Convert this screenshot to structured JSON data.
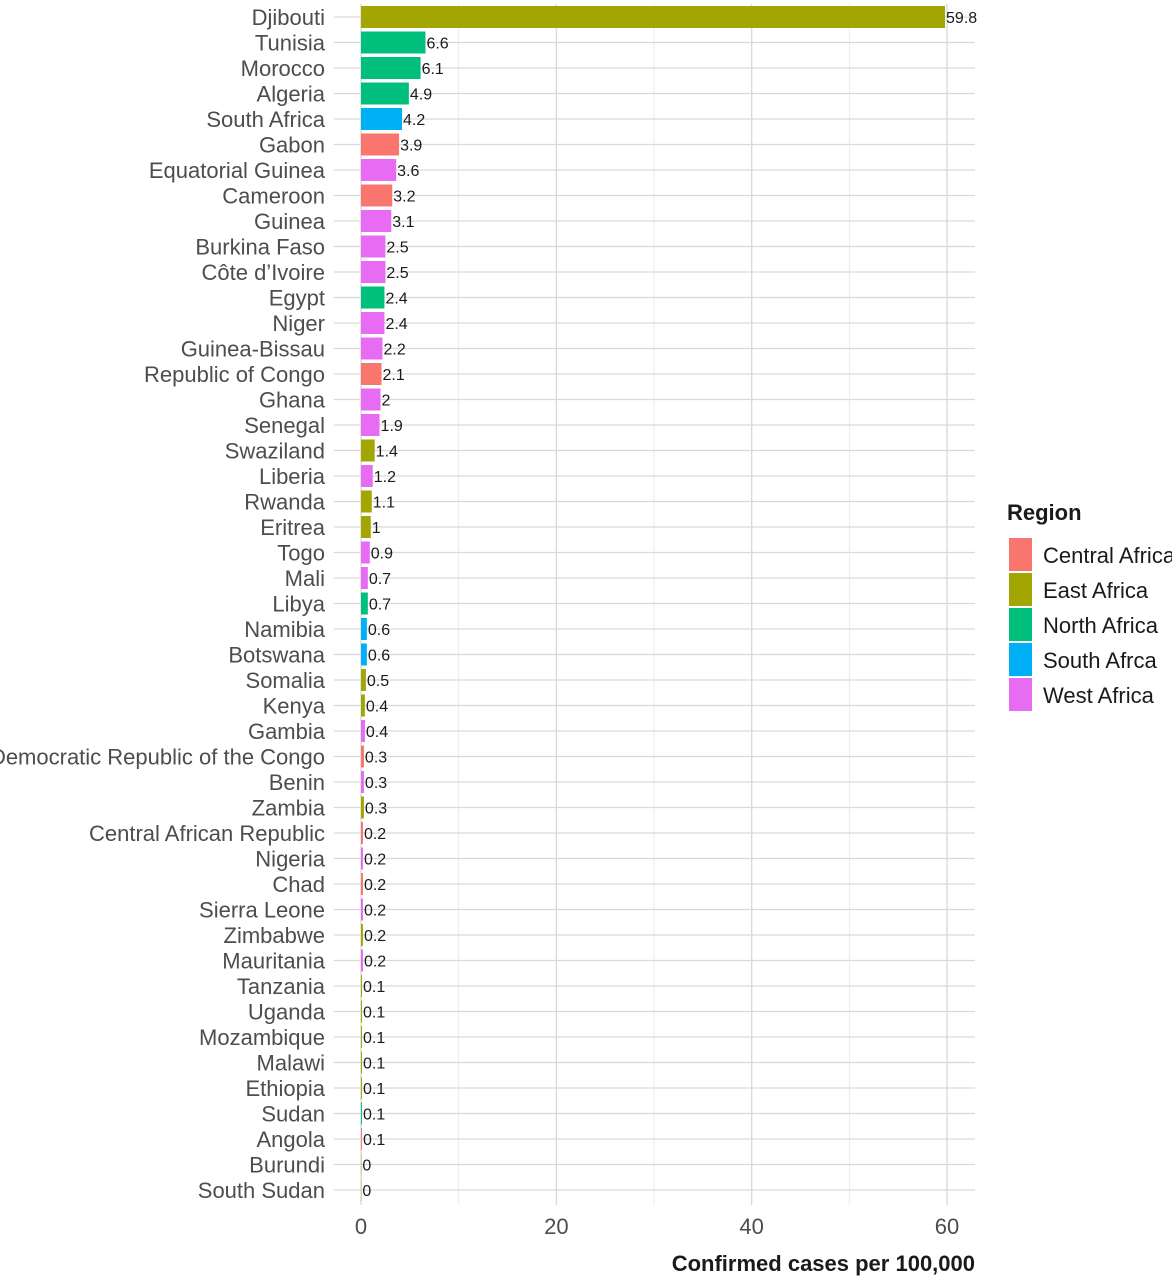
{
  "chart_data": {
    "type": "bar",
    "orientation": "horizontal",
    "xlabel": "Confirmed cases per 100,000",
    "ylabel": "",
    "xlim": [
      0,
      62.8
    ],
    "x_ticks": [
      0,
      20,
      40,
      60
    ],
    "grid": true,
    "legend": {
      "title": "Region",
      "position": "right",
      "entries": [
        {
          "name": "Central Africa",
          "color": "#F8766D"
        },
        {
          "name": "East Africa",
          "color": "#A3A500"
        },
        {
          "name": "North Africa",
          "color": "#00BF7D"
        },
        {
          "name": "South Afrca",
          "color": "#00B0F6"
        },
        {
          "name": "West Africa",
          "color": "#E76BF3"
        }
      ]
    },
    "bars": [
      {
        "country": "Djibouti",
        "value": 59.8,
        "label": "59.8",
        "region": "East Africa"
      },
      {
        "country": "Tunisia",
        "value": 6.6,
        "label": "6.6",
        "region": "North Africa"
      },
      {
        "country": "Morocco",
        "value": 6.1,
        "label": "6.1",
        "region": "North Africa"
      },
      {
        "country": "Algeria",
        "value": 4.9,
        "label": "4.9",
        "region": "North Africa"
      },
      {
        "country": "South Africa",
        "value": 4.2,
        "label": "4.2",
        "region": "South Afrca"
      },
      {
        "country": "Gabon",
        "value": 3.9,
        "label": "3.9",
        "region": "Central Africa"
      },
      {
        "country": "Equatorial Guinea",
        "value": 3.6,
        "label": "3.6",
        "region": "West Africa"
      },
      {
        "country": "Cameroon",
        "value": 3.2,
        "label": "3.2",
        "region": "Central Africa"
      },
      {
        "country": "Guinea",
        "value": 3.1,
        "label": "3.1",
        "region": "West Africa"
      },
      {
        "country": "Burkina Faso",
        "value": 2.5,
        "label": "2.5",
        "region": "West Africa"
      },
      {
        "country": "Côte d’Ivoire",
        "value": 2.5,
        "label": "2.5",
        "region": "West Africa"
      },
      {
        "country": "Egypt",
        "value": 2.4,
        "label": "2.4",
        "region": "North Africa"
      },
      {
        "country": "Niger",
        "value": 2.4,
        "label": "2.4",
        "region": "West Africa"
      },
      {
        "country": "Guinea-Bissau",
        "value": 2.2,
        "label": "2.2",
        "region": "West Africa"
      },
      {
        "country": "Republic of Congo",
        "value": 2.1,
        "label": "2.1",
        "region": "Central Africa"
      },
      {
        "country": "Ghana",
        "value": 2.0,
        "label": "2",
        "region": "West Africa"
      },
      {
        "country": "Senegal",
        "value": 1.9,
        "label": "1.9",
        "region": "West Africa"
      },
      {
        "country": "Swaziland",
        "value": 1.4,
        "label": "1.4",
        "region": "East Africa"
      },
      {
        "country": "Liberia",
        "value": 1.2,
        "label": "1.2",
        "region": "West Africa"
      },
      {
        "country": "Rwanda",
        "value": 1.1,
        "label": "1.1",
        "region": "East Africa"
      },
      {
        "country": "Eritrea",
        "value": 1.0,
        "label": "1",
        "region": "East Africa"
      },
      {
        "country": "Togo",
        "value": 0.9,
        "label": "0.9",
        "region": "West Africa"
      },
      {
        "country": "Mali",
        "value": 0.7,
        "label": "0.7",
        "region": "West Africa"
      },
      {
        "country": "Libya",
        "value": 0.7,
        "label": "0.7",
        "region": "North Africa"
      },
      {
        "country": "Namibia",
        "value": 0.6,
        "label": "0.6",
        "region": "South Afrca"
      },
      {
        "country": "Botswana",
        "value": 0.6,
        "label": "0.6",
        "region": "South Afrca"
      },
      {
        "country": "Somalia",
        "value": 0.5,
        "label": "0.5",
        "region": "East Africa"
      },
      {
        "country": "Kenya",
        "value": 0.4,
        "label": "0.4",
        "region": "East Africa"
      },
      {
        "country": "Gambia",
        "value": 0.4,
        "label": "0.4",
        "region": "West Africa"
      },
      {
        "country": "Democratic Republic of the Congo",
        "value": 0.3,
        "label": "0.3",
        "region": "Central Africa"
      },
      {
        "country": "Benin",
        "value": 0.3,
        "label": "0.3",
        "region": "West Africa"
      },
      {
        "country": "Zambia",
        "value": 0.3,
        "label": "0.3",
        "region": "East Africa"
      },
      {
        "country": "Central African Republic",
        "value": 0.2,
        "label": "0.2",
        "region": "Central Africa"
      },
      {
        "country": "Nigeria",
        "value": 0.2,
        "label": "0.2",
        "region": "West Africa"
      },
      {
        "country": "Chad",
        "value": 0.2,
        "label": "0.2",
        "region": "Central Africa"
      },
      {
        "country": "Sierra Leone",
        "value": 0.2,
        "label": "0.2",
        "region": "West Africa"
      },
      {
        "country": "Zimbabwe",
        "value": 0.2,
        "label": "0.2",
        "region": "East Africa"
      },
      {
        "country": "Mauritania",
        "value": 0.2,
        "label": "0.2",
        "region": "West Africa"
      },
      {
        "country": "Tanzania",
        "value": 0.1,
        "label": "0.1",
        "region": "East Africa"
      },
      {
        "country": "Uganda",
        "value": 0.1,
        "label": "0.1",
        "region": "East Africa"
      },
      {
        "country": "Mozambique",
        "value": 0.1,
        "label": "0.1",
        "region": "East Africa"
      },
      {
        "country": "Malawi",
        "value": 0.1,
        "label": "0.1",
        "region": "East Africa"
      },
      {
        "country": "Ethiopia",
        "value": 0.1,
        "label": "0.1",
        "region": "East Africa"
      },
      {
        "country": "Sudan",
        "value": 0.1,
        "label": "0.1",
        "region": "North Africa"
      },
      {
        "country": "Angola",
        "value": 0.1,
        "label": "0.1",
        "region": "Central Africa"
      },
      {
        "country": "Burundi",
        "value": 0.04,
        "label": "0",
        "region": "East Africa"
      },
      {
        "country": "South Sudan",
        "value": 0.04,
        "label": "0",
        "region": "East Africa"
      }
    ]
  }
}
